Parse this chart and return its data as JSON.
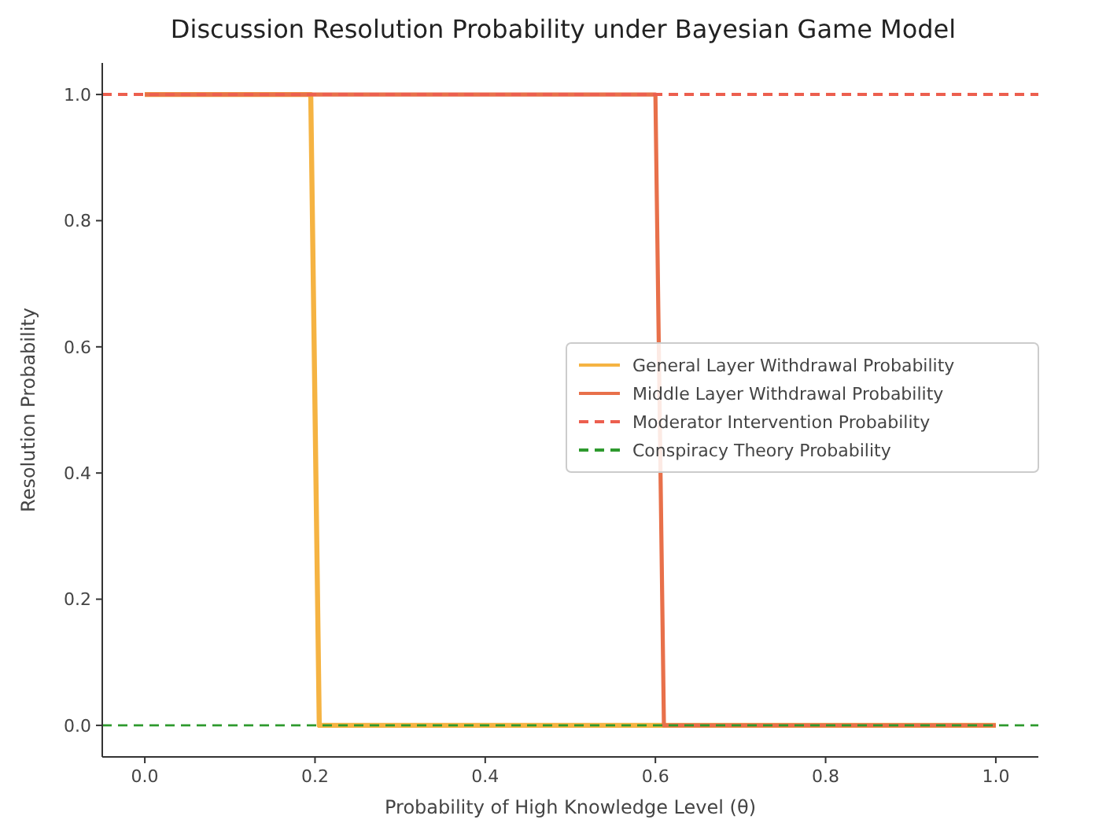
{
  "chart_data": {
    "type": "line",
    "title": "Discussion Resolution Probability under Bayesian Game Model",
    "xlabel": "Probability of High Knowledge Level (θ)",
    "ylabel": "Resolution Probability",
    "xlim": [
      -0.05,
      1.05
    ],
    "ylim": [
      -0.05,
      1.05
    ],
    "xticks": [
      {
        "value": 0,
        "label": "0.0"
      },
      0.2,
      0.4,
      0.6,
      0.8,
      {
        "value": 1,
        "label": "1.0"
      }
    ],
    "yticks": [
      {
        "value": 0,
        "label": "0.0"
      },
      0.2,
      0.4,
      0.6,
      0.8,
      {
        "value": 1,
        "label": "1.0"
      }
    ],
    "grid": false,
    "legend": "right",
    "series": [
      {
        "name": "General Layer Withdrawal Probability",
        "color": "#f5b342",
        "x": [
          0,
          0.195,
          0.205,
          1
        ],
        "values": [
          1,
          1,
          0,
          0
        ],
        "line_style": "solid"
      },
      {
        "name": "Middle Layer Withdrawal Probability",
        "color": "#e8704a",
        "x": [
          0,
          0.6,
          0.61,
          1
        ],
        "values": [
          1,
          1,
          0,
          0
        ],
        "line_style": "solid"
      },
      {
        "name": "Moderator Intervention Probability",
        "color": "#ec5f4f",
        "x": [
          -0.05,
          1.05
        ],
        "values": [
          1,
          1
        ],
        "line_style": "dashed"
      },
      {
        "name": "Conspiracy Theory Probability",
        "color": "#2e9a2e",
        "x": [
          -0.05,
          1.05
        ],
        "values": [
          0,
          0
        ],
        "line_style": "dashed"
      }
    ]
  }
}
